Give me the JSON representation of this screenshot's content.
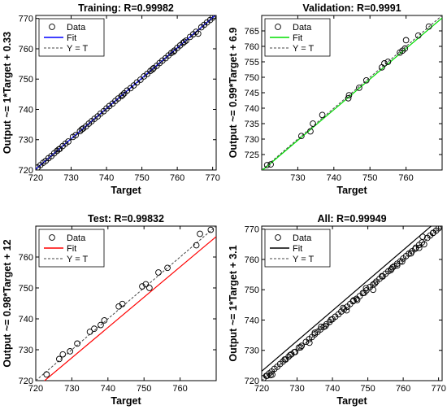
{
  "chart_data": [
    {
      "type": "scatter",
      "title": "Training: R=0.99982",
      "xlabel": "Target",
      "ylabel": "Output ~= 1*Target + 0.33",
      "xlim": [
        720,
        771
      ],
      "ylim": [
        720,
        771
      ],
      "xticks": [
        720,
        730,
        740,
        750,
        760,
        770
      ],
      "yticks": [
        720,
        730,
        740,
        750,
        760,
        770
      ],
      "fit_color": "#0000ff",
      "fit": {
        "slope": 1.0,
        "intercept": 0.33
      },
      "legend": {
        "position": "top-left",
        "items": [
          "Data",
          "Fit",
          "Y = T"
        ]
      },
      "points": [
        [
          720.5,
          720.8
        ],
        [
          721.3,
          721.6
        ],
        [
          722.1,
          722.4
        ],
        [
          722.8,
          723.0
        ],
        [
          723.6,
          723.9
        ],
        [
          724.4,
          724.6
        ],
        [
          725.2,
          725.5
        ],
        [
          726.0,
          726.3
        ],
        [
          726.8,
          727.0
        ],
        [
          727.6,
          727.9
        ],
        [
          728.4,
          728.7
        ],
        [
          729.2,
          729.4
        ],
        [
          730.5,
          730.9
        ],
        [
          731.3,
          731.5
        ],
        [
          732.5,
          732.8
        ],
        [
          733.4,
          733.7
        ],
        [
          734.2,
          734.4
        ],
        [
          735.0,
          735.3
        ],
        [
          735.8,
          736.1
        ],
        [
          736.6,
          736.9
        ],
        [
          737.5,
          737.7
        ],
        [
          738.3,
          738.6
        ],
        [
          739.2,
          739.4
        ],
        [
          740.0,
          740.3
        ],
        [
          740.8,
          741.1
        ],
        [
          741.7,
          741.9
        ],
        [
          742.5,
          742.8
        ],
        [
          743.3,
          743.6
        ],
        [
          744.2,
          744.4
        ],
        [
          745.0,
          745.3
        ],
        [
          745.8,
          746.2
        ],
        [
          746.8,
          747.0
        ],
        [
          747.7,
          747.9
        ],
        [
          748.6,
          748.9
        ],
        [
          749.6,
          749.8
        ],
        [
          750.6,
          750.9
        ],
        [
          751.5,
          751.7
        ],
        [
          752.4,
          752.7
        ],
        [
          753.3,
          753.6
        ],
        [
          754.2,
          754.4
        ],
        [
          755.0,
          755.3
        ],
        [
          755.8,
          756.1
        ],
        [
          756.7,
          756.9
        ],
        [
          757.5,
          757.8
        ],
        [
          758.3,
          758.6
        ],
        [
          759.2,
          759.4
        ],
        [
          760.0,
          760.3
        ],
        [
          760.8,
          761.1
        ],
        [
          761.6,
          761.9
        ],
        [
          762.5,
          762.7
        ],
        [
          763.6,
          763.9
        ],
        [
          764.5,
          764.8
        ],
        [
          765.3,
          765.6
        ],
        [
          765.9,
          765.0
        ],
        [
          766.8,
          767.1
        ],
        [
          767.6,
          767.9
        ],
        [
          768.4,
          768.7
        ],
        [
          769.3,
          769.5
        ],
        [
          770.0,
          770.3
        ],
        [
          753.0,
          753.2
        ],
        [
          744.6,
          744.8
        ],
        [
          733.0,
          733.4
        ],
        [
          758.9,
          759.0
        ],
        [
          726.5,
          726.8
        ],
        [
          762.0,
          762.3
        ]
      ]
    },
    {
      "type": "scatter",
      "title": "Validation: R=0.9991",
      "xlabel": "Target",
      "ylabel": "Output ~= 0.99*Target + 6.9",
      "xlim": [
        720,
        770
      ],
      "ylim": [
        720,
        770
      ],
      "xticks": [
        730,
        740,
        750,
        760
      ],
      "yticks": [
        725,
        730,
        735,
        740,
        745,
        750,
        755,
        760,
        765
      ],
      "fit_color": "#00dd00",
      "fit": {
        "slope": 0.99,
        "intercept": 6.9
      },
      "legend": {
        "position": "top-left",
        "items": [
          "Data",
          "Fit",
          "Y = T"
        ]
      },
      "points": [
        [
          721.5,
          721.6
        ],
        [
          722.5,
          721.8
        ],
        [
          731.0,
          731.0
        ],
        [
          733.5,
          732.5
        ],
        [
          734.2,
          735.0
        ],
        [
          736.8,
          737.8
        ],
        [
          744.0,
          743.2
        ],
        [
          744.2,
          744.2
        ],
        [
          747.0,
          746.6
        ],
        [
          749.0,
          749.0
        ],
        [
          753.3,
          753.2
        ],
        [
          754.0,
          754.5
        ],
        [
          755.0,
          755.0
        ],
        [
          758.3,
          758.0
        ],
        [
          759.0,
          758.6
        ],
        [
          759.7,
          759.3
        ],
        [
          760.0,
          762.0
        ],
        [
          763.4,
          763.5
        ],
        [
          766.3,
          766.4
        ]
      ]
    },
    {
      "type": "scatter",
      "title": "Test: R=0.99832",
      "xlabel": "Target",
      "ylabel": "Output ~= 0.98*Target + 12",
      "xlim": [
        720,
        770
      ],
      "ylim": [
        720,
        770
      ],
      "xticks": [
        720,
        730,
        740,
        750,
        760
      ],
      "yticks": [
        720,
        730,
        740,
        750,
        760
      ],
      "fit_color": "#ff0000",
      "fit": {
        "slope": 0.98,
        "intercept": 12
      },
      "legend": {
        "position": "top-left",
        "items": [
          "Data",
          "Fit",
          "Y = T"
        ]
      },
      "points": [
        [
          723.0,
          722.0
        ],
        [
          726.5,
          727.0
        ],
        [
          727.5,
          728.5
        ],
        [
          729.5,
          729.5
        ],
        [
          731.5,
          732.0
        ],
        [
          735.0,
          735.8
        ],
        [
          736.2,
          736.8
        ],
        [
          738.0,
          738.0
        ],
        [
          739.0,
          739.5
        ],
        [
          743.0,
          744.0
        ],
        [
          744.0,
          744.8
        ],
        [
          749.5,
          750.5
        ],
        [
          750.5,
          751.2
        ],
        [
          751.5,
          750.0
        ],
        [
          754.0,
          755.0
        ],
        [
          756.5,
          756.5
        ],
        [
          764.5,
          763.8
        ],
        [
          765.5,
          767.5
        ],
        [
          768.5,
          768.8
        ]
      ]
    },
    {
      "type": "scatter",
      "title": "All: R=0.99949",
      "xlabel": "Target",
      "ylabel": "Output ~= 1*Target + 3.1",
      "xlim": [
        720,
        771
      ],
      "ylim": [
        720,
        771
      ],
      "xticks": [
        720,
        730,
        740,
        750,
        760,
        770
      ],
      "yticks": [
        720,
        730,
        740,
        750,
        760,
        770
      ],
      "fit_color": "#000000",
      "fit": {
        "slope": 1.0,
        "intercept": 3.1
      },
      "legend": {
        "position": "top-left",
        "items": [
          "Data",
          "Fit",
          "Y = T"
        ]
      },
      "points": [
        [
          720.5,
          720.8
        ],
        [
          721.3,
          721.6
        ],
        [
          722.1,
          722.4
        ],
        [
          722.8,
          723.0
        ],
        [
          723.6,
          723.9
        ],
        [
          724.4,
          724.6
        ],
        [
          725.2,
          725.5
        ],
        [
          726.0,
          726.3
        ],
        [
          726.8,
          727.0
        ],
        [
          727.6,
          727.9
        ],
        [
          728.4,
          728.7
        ],
        [
          729.2,
          729.4
        ],
        [
          730.5,
          730.9
        ],
        [
          731.3,
          731.5
        ],
        [
          732.5,
          732.8
        ],
        [
          733.4,
          733.7
        ],
        [
          734.2,
          734.4
        ],
        [
          735.0,
          735.3
        ],
        [
          735.8,
          736.1
        ],
        [
          736.6,
          736.9
        ],
        [
          737.5,
          737.7
        ],
        [
          738.3,
          738.6
        ],
        [
          739.2,
          739.4
        ],
        [
          740.0,
          740.3
        ],
        [
          740.8,
          741.1
        ],
        [
          741.7,
          741.9
        ],
        [
          742.5,
          742.8
        ],
        [
          743.3,
          743.6
        ],
        [
          744.2,
          744.4
        ],
        [
          745.0,
          745.3
        ],
        [
          745.8,
          746.2
        ],
        [
          746.8,
          747.0
        ],
        [
          747.7,
          747.9
        ],
        [
          748.6,
          748.9
        ],
        [
          749.6,
          749.8
        ],
        [
          750.6,
          750.9
        ],
        [
          751.5,
          751.7
        ],
        [
          752.4,
          752.7
        ],
        [
          753.3,
          753.6
        ],
        [
          754.2,
          754.4
        ],
        [
          755.0,
          755.3
        ],
        [
          755.8,
          756.1
        ],
        [
          756.7,
          756.9
        ],
        [
          757.5,
          757.8
        ],
        [
          758.3,
          758.6
        ],
        [
          759.2,
          759.4
        ],
        [
          760.0,
          760.3
        ],
        [
          760.8,
          761.1
        ],
        [
          761.6,
          761.9
        ],
        [
          762.5,
          762.7
        ],
        [
          763.6,
          763.9
        ],
        [
          764.5,
          764.8
        ],
        [
          765.3,
          765.6
        ],
        [
          765.9,
          765.0
        ],
        [
          766.8,
          767.1
        ],
        [
          767.6,
          767.9
        ],
        [
          768.4,
          768.7
        ],
        [
          769.3,
          769.5
        ],
        [
          770.0,
          770.3
        ],
        [
          721.5,
          721.6
        ],
        [
          722.5,
          721.8
        ],
        [
          731.0,
          731.0
        ],
        [
          733.5,
          732.5
        ],
        [
          736.8,
          737.8
        ],
        [
          744.0,
          743.2
        ],
        [
          747.0,
          746.6
        ],
        [
          749.0,
          749.0
        ],
        [
          754.0,
          754.5
        ],
        [
          758.3,
          758.0
        ],
        [
          759.7,
          759.3
        ],
        [
          763.4,
          763.5
        ],
        [
          723.0,
          722.0
        ],
        [
          726.5,
          727.0
        ],
        [
          729.5,
          729.5
        ],
        [
          735.0,
          735.8
        ],
        [
          738.0,
          738.0
        ],
        [
          743.0,
          744.0
        ],
        [
          749.5,
          750.5
        ],
        [
          751.5,
          750.0
        ],
        [
          756.5,
          756.5
        ],
        [
          764.5,
          763.8
        ],
        [
          765.5,
          767.5
        ],
        [
          768.5,
          768.8
        ],
        [
          728.0,
          728.4
        ],
        [
          739.6,
          740.1
        ],
        [
          752.0,
          752.1
        ],
        [
          757.0,
          757.4
        ],
        [
          762.2,
          762.0
        ],
        [
          746.0,
          746.5
        ]
      ]
    }
  ]
}
